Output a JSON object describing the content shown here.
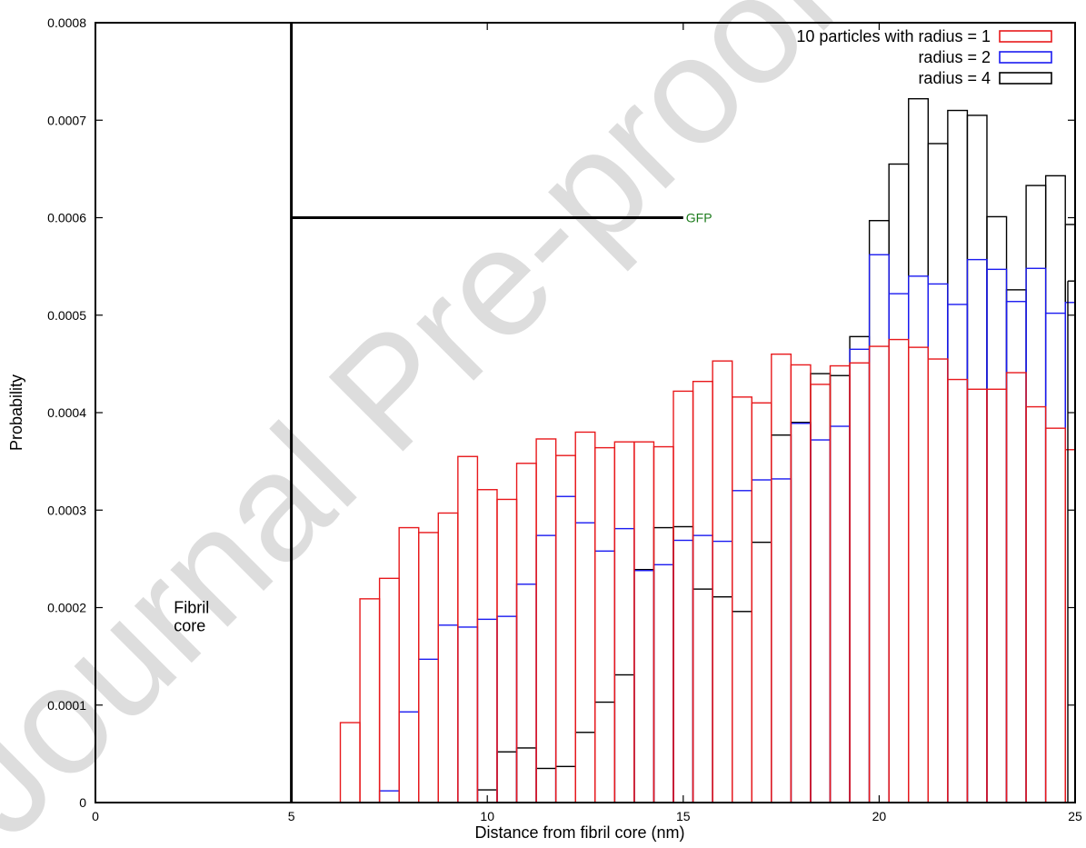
{
  "chart_data": {
    "type": "bar",
    "title": "",
    "xlabel": "Distance from fibril core (nm)",
    "ylabel": "Probability",
    "xlim": [
      0,
      25
    ],
    "ylim": [
      0,
      0.0008
    ],
    "xticks": [
      0,
      5,
      10,
      15,
      20,
      25
    ],
    "yticks": [
      0,
      0.0001,
      0.0002,
      0.0003,
      0.0004,
      0.0005,
      0.0006,
      0.0007,
      0.0008
    ],
    "ytick_labels": [
      "0",
      "0.0001",
      "0.0002",
      "0.0003",
      "0.0004",
      "0.0005",
      "0.0006",
      "0.0007",
      "0.0008"
    ],
    "grid": false,
    "legend_position": "top-right",
    "bin_width": 0.5,
    "bin_starts": [
      6.25,
      6.75,
      7.25,
      7.75,
      8.25,
      8.75,
      9.25,
      9.75,
      10.25,
      10.75,
      11.25,
      11.75,
      12.25,
      12.75,
      13.25,
      13.75,
      14.25,
      14.75,
      15.25,
      15.75,
      16.25,
      16.75,
      17.25,
      17.75,
      18.25,
      18.75,
      19.25,
      19.75,
      20.25,
      20.75,
      21.25,
      21.75,
      22.25,
      22.75,
      23.25,
      23.75,
      24.25,
      24.75
    ],
    "series": [
      {
        "name": "10 particles with radius = 1",
        "color": "#e8191c",
        "values": [
          8.2e-05,
          0.000209,
          0.00023,
          0.000282,
          0.000277,
          0.000297,
          0.000355,
          0.000321,
          0.000311,
          0.000348,
          0.000373,
          0.000356,
          0.00038,
          0.000364,
          0.00037,
          0.00037,
          0.000365,
          0.000422,
          0.000432,
          0.000453,
          0.000416,
          0.00041,
          0.00046,
          0.000449,
          0.000429,
          0.000448,
          0.000451,
          0.000468,
          0.000475,
          0.000467,
          0.000455,
          0.000434,
          0.000424,
          0.000424,
          0.000441,
          0.000406,
          0.000384,
          0.000362
        ]
      },
      {
        "name": "radius = 2",
        "color": "#1b1bf0",
        "values": [
          0,
          0,
          1.2e-05,
          9.3e-05,
          0.000147,
          0.000182,
          0.00018,
          0.000188,
          0.000191,
          0.000224,
          0.000274,
          0.000314,
          0.000287,
          0.000258,
          0.000281,
          0.000238,
          0.000244,
          0.000269,
          0.000274,
          0.000268,
          0.00032,
          0.000331,
          0.000332,
          0.000389,
          0.000372,
          0.000386,
          0.000465,
          0.000562,
          0.000522,
          0.00054,
          0.000532,
          0.000511,
          0.000557,
          0.000547,
          0.000514,
          0.000548,
          0.000502,
          0.000513
        ]
      },
      {
        "name": "radius = 4",
        "color": "#000000",
        "values": [
          0,
          0,
          0,
          0,
          0,
          0,
          0,
          1.3e-05,
          5.2e-05,
          5.6e-05,
          3.5e-05,
          3.7e-05,
          7.2e-05,
          0.000103,
          0.000131,
          0.000239,
          0.000282,
          0.000283,
          0.000219,
          0.000211,
          0.000196,
          0.000267,
          0.000377,
          0.00039,
          0.00044,
          0.000438,
          0.000478,
          0.000597,
          0.000655,
          0.000722,
          0.000676,
          0.00071,
          0.000705,
          0.000601,
          0.000526,
          0.000633,
          0.000643,
          0.000593
        ]
      }
    ],
    "overflow_bar": {
      "series": "radius = 4",
      "bin_start": 25.0,
      "value": 0.000535
    },
    "annotations": {
      "core_label_line1": "Fibril",
      "core_label_line2": "core",
      "core_label_x": 2.0,
      "core_label_y": 0.0002,
      "gfp_label": "GFP",
      "gfp_label_color": "#1a7a1a",
      "core_boundary_x": 5,
      "gfp_line": {
        "x_start": 5,
        "x_end": 15,
        "y": 0.0006
      }
    }
  },
  "watermark": {
    "text": "Journal Pre-proof",
    "color": "#d8d8d8"
  }
}
